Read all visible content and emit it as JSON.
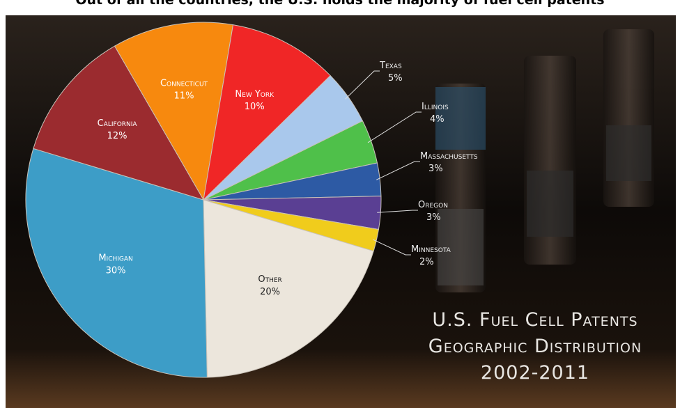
{
  "chart_data": {
    "type": "pie",
    "title": "Out of all the countries, the U.S. holds the majority of fuel cell patents",
    "subtitle": [
      "U.S. Fuel Cell Patents",
      "Geographic Distribution",
      "2002-2011"
    ],
    "categories": [
      "Connecticut",
      "New York",
      "Texas",
      "Illinois",
      "Massachusetts",
      "Oregon",
      "Minnesota",
      "Other",
      "Michigan",
      "California"
    ],
    "values": [
      11,
      10,
      5,
      4,
      3,
      3,
      2,
      20,
      30,
      12
    ],
    "value_labels": [
      "11%",
      "10%",
      "5%",
      "4%",
      "3%",
      "3%",
      "2%",
      "20%",
      "30%",
      "12%"
    ],
    "colors": [
      "#f7890e",
      "#f02626",
      "#a9c8ec",
      "#4fc04a",
      "#2d5aa4",
      "#5a3f93",
      "#f0cc1c",
      "#ece6dc",
      "#3d9dc7",
      "#9b2b2f"
    ]
  }
}
